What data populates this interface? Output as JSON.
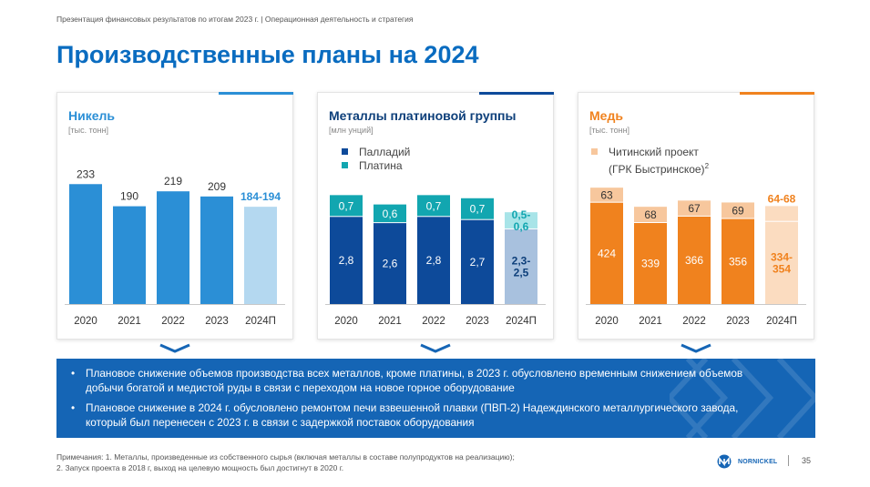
{
  "header": {
    "breadcrumb": "Презентация финансовых результатов по итогам 2023 г. | Операционная деятельность и стратегия",
    "title": "Производственные планы на 2024"
  },
  "colors": {
    "title_blue": "#0a6cc0",
    "nickel_bar": "#2b8fd6",
    "nickel_forecast": "#b4d8f0",
    "palladium": "#0d4a9a",
    "platinum": "#12a6b0",
    "palladium_forecast": "#a8c1de",
    "platinum_forecast": "#a8e4e8",
    "copper_main": "#f0821e",
    "copper_chita": "#f7c79d",
    "copper_forecast": "#fbdcc0",
    "box_blue": "#1565b5"
  },
  "chart_data": [
    {
      "type": "bar",
      "title": "Никель",
      "unit": "[тыс. тонн]",
      "categories": [
        "2020",
        "2021",
        "2022",
        "2023",
        "2024П"
      ],
      "values": [
        233,
        190,
        219,
        209,
        189
      ],
      "value_labels": [
        "233",
        "190",
        "219",
        "209",
        "184-194"
      ],
      "forecast_index": 4,
      "ylim": [
        0,
        260
      ]
    },
    {
      "type": "bar",
      "stacked": true,
      "title": "Металлы платиновой группы",
      "unit": "[млн унций]",
      "categories": [
        "2020",
        "2021",
        "2022",
        "2023",
        "2024П"
      ],
      "series": [
        {
          "name": "Палладий",
          "values": [
            2.8,
            2.6,
            2.8,
            2.7,
            2.4
          ],
          "labels": [
            "2,8",
            "2,6",
            "2,8",
            "2,7",
            "2,3-\n2,5"
          ]
        },
        {
          "name": "Платина",
          "values": [
            0.7,
            0.6,
            0.7,
            0.7,
            0.55
          ],
          "labels": [
            "0,7",
            "0,6",
            "0,7",
            "0,7",
            "0,5-\n0,6"
          ]
        }
      ],
      "forecast_index": 4,
      "ylim": [
        0,
        4.3
      ]
    },
    {
      "type": "bar",
      "stacked": true,
      "title": "Медь",
      "unit": "[тыс. тонн]",
      "categories": [
        "2020",
        "2021",
        "2022",
        "2023",
        "2024П"
      ],
      "series": [
        {
          "name": "",
          "values": [
            424,
            339,
            366,
            356,
            344
          ],
          "labels": [
            "424",
            "339",
            "366",
            "356",
            "334-\n354"
          ]
        },
        {
          "name": "Читинский проект (ГРК Быстринское)2",
          "values": [
            63,
            68,
            67,
            69,
            66
          ],
          "labels": [
            "63",
            "68",
            "67",
            "69",
            "64-68"
          ]
        }
      ],
      "forecast_index": 4,
      "ylim": [
        0,
        560
      ]
    }
  ],
  "legend": {
    "pgm": [
      "Палладий",
      "Платина"
    ],
    "copper_line1": "Читинский проект",
    "copper_line2": "(ГРК Быстринское)",
    "copper_sup": "2"
  },
  "notes": [
    "Плановое снижение объемов производства всех металлов, кроме платины, в 2023 г. обусловлено временным снижением объемов добычи богатой и медистой руды в связи с переходом на новое горное оборудование",
    "Плановое снижение в 2024 г. обусловлено ремонтом печи взвешенной плавки (ПВП-2) Надеждинского металлургического завода, который был перенесен с 2023 г. в связи с задержкой поставок оборудования"
  ],
  "footnote": {
    "line1": "Примечания: 1. Металлы, произведенные из собственного сырья (включая металлы в составе полупродуктов на реализацию);",
    "line2": "2. Запуск проекта в 2018 г, выход на целевую мощность был достигнут в 2020 г."
  },
  "logo_text": "NORNICKEL",
  "page_number": "35"
}
